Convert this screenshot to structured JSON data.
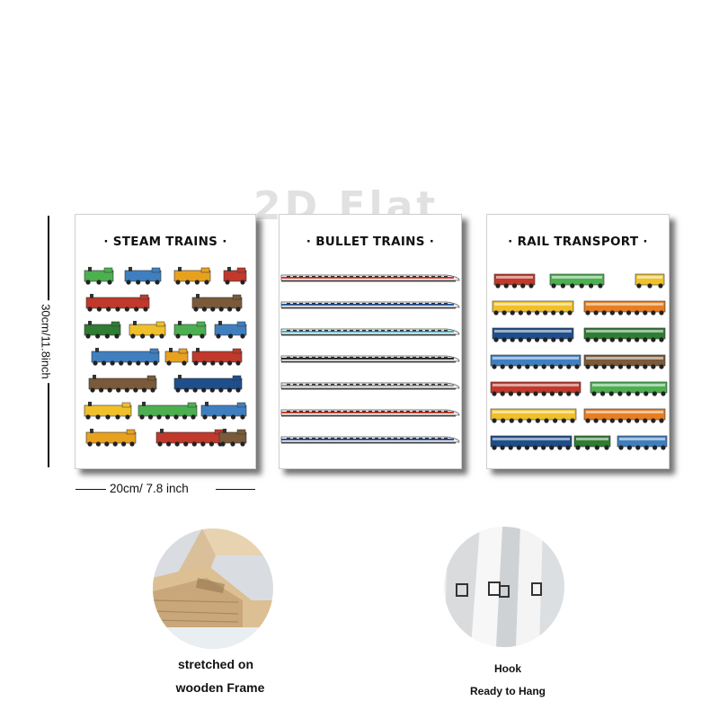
{
  "watermark": "2D Flat",
  "posters": [
    {
      "title": "· STEAM TRAINS ·",
      "palette": [
        "#4caf50",
        "#3f7fc0",
        "#e8a11f",
        "#c0392b",
        "#7a5a3a",
        "#1f4e8c",
        "#2e7d32",
        "#f0c02a"
      ]
    },
    {
      "title": "· BULLET TRAINS ·",
      "palette": [
        "#d23c2c",
        "#2b5aa8",
        "#37b6c9",
        "#2a2a2a",
        "#9aa0a6"
      ]
    },
    {
      "title": "· RAIL TRANSPORT ·",
      "palette": [
        "#c0392b",
        "#4caf50",
        "#f0c02a",
        "#e67e22",
        "#1f4e8c",
        "#2e7d32",
        "#3f7fc0",
        "#7a5a3a"
      ]
    }
  ],
  "dimensions": {
    "height_label": "30cm/11.8inch",
    "width_label": "20cm/ 7.8 inch"
  },
  "details": {
    "frame_caption_line1": "stretched on",
    "frame_caption_line2": "wooden Frame",
    "hook_caption_line1": "Hook",
    "hook_caption_line2": "Ready to Hang"
  }
}
